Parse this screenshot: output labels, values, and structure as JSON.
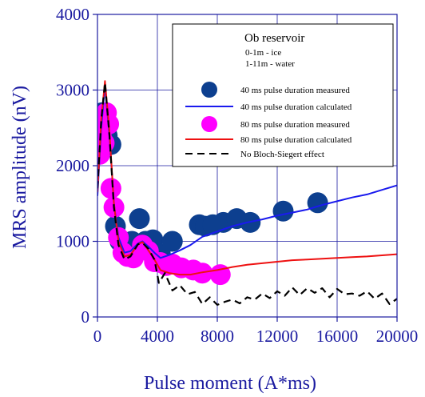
{
  "chart_data": {
    "type": "scatter",
    "title": "",
    "xlabel": "Pulse moment (A*ms)",
    "ylabel": "MRS amplitude (nV)",
    "xlim": [
      0,
      20000
    ],
    "ylim": [
      0,
      4000
    ],
    "xticks": [
      0,
      4000,
      8000,
      12000,
      16000,
      20000
    ],
    "yticks": [
      0,
      1000,
      2000,
      3000,
      4000
    ],
    "grid": true,
    "legend_position": "top-right",
    "legend": {
      "title": "Ob reservoir",
      "notes": [
        "0-1m - ice",
        "1-11m - water"
      ]
    },
    "colors": {
      "axis": "#1a1aa0",
      "measured_40": "#0d3f8f",
      "calculated_40": "#1a1aee",
      "measured_80": "#ff00ff",
      "calculated_80": "#ee1111",
      "no_bloch_siegert": "#000000"
    },
    "series": [
      {
        "name": "40 ms pulse duration measured",
        "kind": "markers",
        "color": "#0d3f8f",
        "x": [
          300,
          400,
          500,
          650,
          900,
          1200,
          1500,
          1900,
          2300,
          2800,
          3200,
          3700,
          4200,
          5000,
          6800,
          7200,
          7700,
          8400,
          9300,
          10200,
          12400,
          14700
        ],
        "y": [
          2700,
          2450,
          2650,
          2400,
          2280,
          1200,
          1000,
          850,
          1000,
          1300,
          1000,
          1020,
          830,
          1000,
          1220,
          1200,
          1220,
          1250,
          1300,
          1250,
          1400,
          1510
        ]
      },
      {
        "name": "40 ms pulse duration  calculated",
        "kind": "line",
        "color": "#1a1aee",
        "x": [
          0,
          250,
          500,
          800,
          1100,
          1400,
          1800,
          2200,
          2700,
          3000,
          3400,
          3800,
          4200,
          4800,
          5500,
          6200,
          7000,
          8000,
          9000,
          10000,
          11000,
          12000,
          13000,
          14000,
          15000,
          16000,
          17000,
          18000,
          19000,
          20000
        ],
        "y": [
          1600,
          2500,
          3050,
          2400,
          1500,
          1050,
          850,
          870,
          970,
          1000,
          930,
          850,
          780,
          820,
          880,
          950,
          1060,
          1130,
          1200,
          1250,
          1290,
          1340,
          1380,
          1420,
          1480,
          1530,
          1580,
          1620,
          1680,
          1740
        ]
      },
      {
        "name": "80 ms pulse duration  measured",
        "kind": "markers",
        "color": "#ff00ff",
        "x": [
          150,
          250,
          350,
          450,
          600,
          750,
          900,
          1100,
          1400,
          1700,
          2000,
          2400,
          3000,
          3400,
          3800,
          4200,
          4600,
          5000,
          5600,
          6400,
          7000,
          8200
        ],
        "y": [
          2150,
          2400,
          2550,
          2300,
          2700,
          2550,
          1700,
          1450,
          1050,
          850,
          800,
          780,
          950,
          870,
          730,
          720,
          680,
          700,
          650,
          620,
          580,
          560
        ]
      },
      {
        "name": "80 ms pulse duration  calculated",
        "kind": "line",
        "color": "#ee1111",
        "x": [
          0,
          250,
          500,
          800,
          1100,
          1400,
          1800,
          2200,
          2700,
          3000,
          3400,
          3800,
          4200,
          4800,
          5500,
          6200,
          7000,
          8000,
          9000,
          10000,
          11000,
          12000,
          13000,
          14000,
          15000,
          16000,
          17000,
          18000,
          19000,
          20000
        ],
        "y": [
          1650,
          2600,
          3120,
          2450,
          1500,
          1000,
          800,
          820,
          960,
          990,
          880,
          760,
          620,
          580,
          560,
          560,
          590,
          620,
          660,
          690,
          710,
          730,
          750,
          760,
          770,
          780,
          790,
          800,
          815,
          830
        ]
      },
      {
        "name": "No Bloch-Siegert effect",
        "kind": "dashed-line",
        "color": "#000000",
        "x": [
          0,
          250,
          500,
          800,
          1100,
          1400,
          1800,
          2200,
          2700,
          3000,
          3400,
          3800,
          4100,
          4500,
          5000,
          5500,
          6000,
          6500,
          7000,
          7500,
          8000,
          8500,
          9000,
          9500,
          10000,
          10500,
          11000,
          11500,
          12000,
          12500,
          13000,
          13500,
          14000,
          14500,
          15000,
          15500,
          16000,
          16500,
          17000,
          17500,
          18000,
          18500,
          19000,
          19500,
          20000
        ],
        "y": [
          1700,
          2600,
          3100,
          2400,
          1450,
          950,
          760,
          800,
          960,
          980,
          900,
          760,
          450,
          580,
          350,
          420,
          300,
          330,
          170,
          260,
          160,
          200,
          230,
          180,
          260,
          230,
          310,
          250,
          340,
          280,
          390,
          290,
          380,
          320,
          380,
          260,
          370,
          300,
          310,
          280,
          340,
          240,
          310,
          170,
          240
        ]
      }
    ]
  }
}
